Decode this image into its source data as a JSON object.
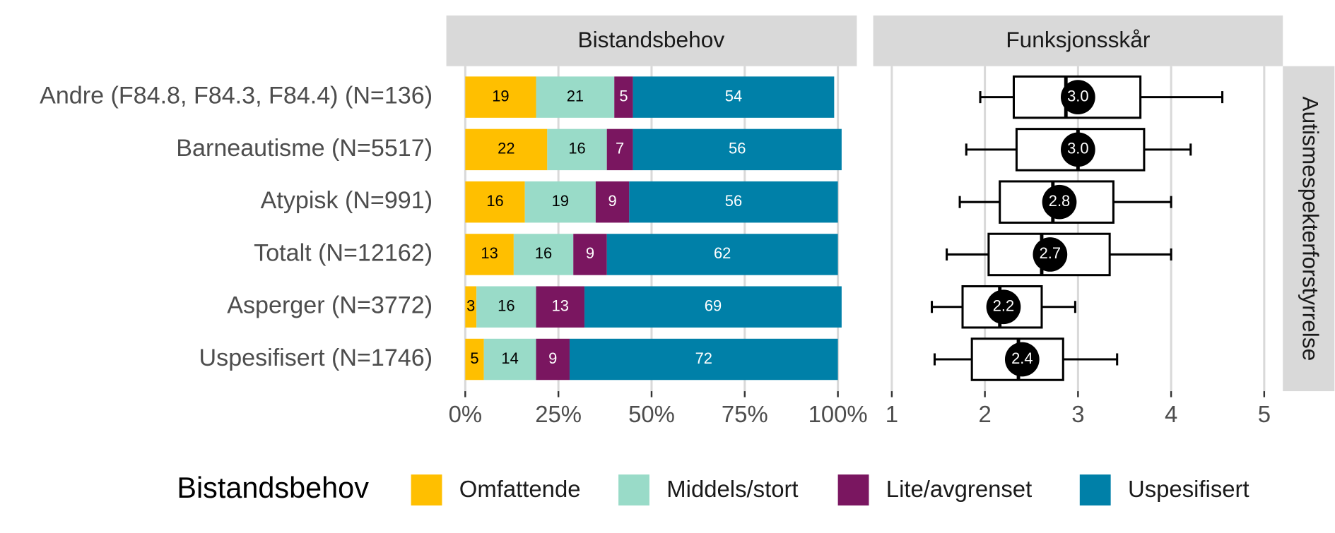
{
  "chart_data": [
    {
      "type": "bar",
      "stacked": true,
      "orientation": "horizontal",
      "strip": "Bistandsbehov",
      "categories": [
        "Andre (F84.8, F84.3, F84.4) (N=136)",
        "Barneautisme (N=5517)",
        "Atypisk (N=991)",
        "Totalt (N=12162)",
        "Asperger (N=3772)",
        "Uspesifisert (N=1746)"
      ],
      "series": [
        {
          "name": "Omfattende",
          "color": "#ffbf00",
          "label_color": "#000000",
          "values": [
            19,
            22,
            16,
            13,
            3,
            5
          ]
        },
        {
          "name": "Middels/stort",
          "color": "#99dbc8",
          "label_color": "#000000",
          "values": [
            21,
            16,
            19,
            16,
            16,
            14
          ]
        },
        {
          "name": "Lite/avgrenset",
          "color": "#7a1660",
          "label_color": "#ffffff",
          "values": [
            5,
            7,
            9,
            9,
            13,
            9
          ]
        },
        {
          "name": "Uspesifisert",
          "color": "#0080a8",
          "label_color": "#ffffff",
          "values": [
            54,
            56,
            56,
            62,
            69,
            72
          ]
        }
      ],
      "xlim": [
        0,
        100
      ],
      "xticks": [
        {
          "value": 0,
          "label": "0%"
        },
        {
          "value": 25,
          "label": "25%"
        },
        {
          "value": 50,
          "label": "50%"
        },
        {
          "value": 75,
          "label": "75%"
        },
        {
          "value": 100,
          "label": "100%"
        }
      ],
      "grid": true,
      "legend_title": "Bistandsbehov",
      "legend_position": "bottom"
    },
    {
      "type": "box",
      "strip": "Funksjonsskår",
      "row_strip": "Autismespekterforstyrrelse",
      "low": [
        1.95,
        1.8,
        1.73,
        1.59,
        1.43,
        1.46
      ],
      "q1": [
        2.31,
        2.34,
        2.16,
        2.04,
        1.76,
        1.86
      ],
      "median": [
        2.87,
        3.0,
        2.73,
        2.61,
        2.16,
        2.36
      ],
      "q3": [
        3.67,
        3.71,
        3.38,
        3.34,
        2.61,
        2.84
      ],
      "high": [
        4.55,
        4.21,
        4.0,
        4.0,
        2.97,
        3.42
      ],
      "mean": [
        3.0,
        3.0,
        2.8,
        2.7,
        2.2,
        2.4
      ],
      "value_labels": [
        "3.0",
        "3.0",
        "2.8",
        "2.7",
        "2.2",
        "2.4"
      ],
      "xlim": [
        0.8,
        5.2
      ],
      "xticks": [
        1,
        2,
        3,
        4,
        5
      ],
      "grid": true
    }
  ]
}
